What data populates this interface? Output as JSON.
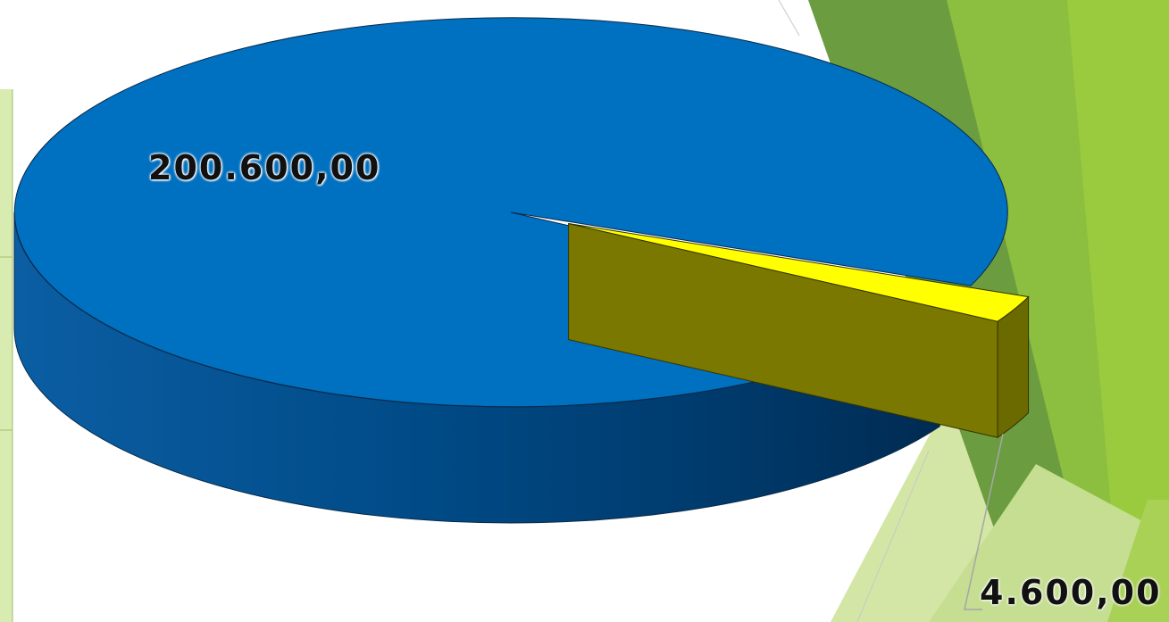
{
  "chart_data": {
    "type": "pie",
    "style": "3d-exploded",
    "slices": [
      {
        "value": 200600.0,
        "label": "200.600,00",
        "color": "#0070c0"
      },
      {
        "value": 4600.0,
        "label": "4.600,00",
        "color": "#ffff00"
      }
    ]
  },
  "theme": {
    "accent_dark_green": "#5a8a2c",
    "accent_green": "#8cbf3f",
    "accent_light_green": "#d4e6a5"
  }
}
